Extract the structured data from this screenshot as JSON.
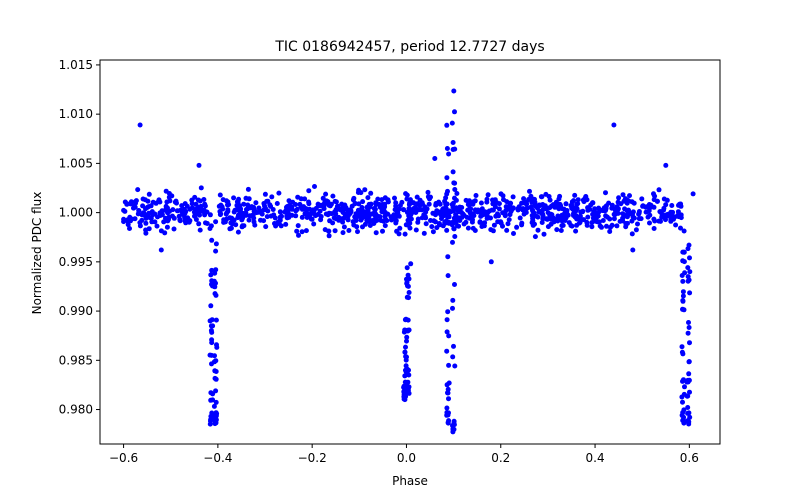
{
  "chart_data": {
    "type": "scatter",
    "title": "TIC 0186942457, period 12.7727 days",
    "xlabel": "Phase",
    "ylabel": "Normalized PDC flux",
    "xlim": [
      -0.65,
      0.665
    ],
    "ylim": [
      0.9765,
      1.0155
    ],
    "xticks": [
      -0.6,
      -0.4,
      -0.2,
      0.0,
      0.2,
      0.4,
      0.6
    ],
    "xtick_labels": [
      "−0.6",
      "−0.4",
      "−0.2",
      "0.0",
      "0.2",
      "0.4",
      "0.6"
    ],
    "yticks": [
      0.98,
      0.985,
      0.99,
      0.995,
      1.0,
      1.005,
      1.01,
      1.015
    ],
    "ytick_labels": [
      "0.980",
      "0.985",
      "0.990",
      "0.995",
      "1.000",
      "1.005",
      "1.010",
      "1.015"
    ],
    "grid": false,
    "marker_color": "#0000ff",
    "baseline": {
      "x_range": [
        -0.6,
        0.6
      ],
      "y_center": 1.0,
      "y_spread": 0.0017,
      "gaps": [
        [
          -0.418,
          -0.398
        ],
        [
          0.585,
          0.6
        ]
      ]
    },
    "features": [
      {
        "x": -0.414,
        "ymin": 0.9785,
        "ymax": 1.0
      },
      {
        "x": -0.405,
        "ymin": 0.9785,
        "ymax": 1.0
      },
      {
        "x": -0.003,
        "ymin": 0.981,
        "ymax": 0.9895
      },
      {
        "x": 0.003,
        "ymin": 0.9815,
        "ymax": 0.995
      },
      {
        "x": 0.088,
        "ymin": 0.9785,
        "ymax": 1.009
      },
      {
        "x": 0.1,
        "ymin": 0.9775,
        "ymax": 1.0138
      },
      {
        "x": 0.587,
        "ymin": 0.9785,
        "ymax": 1.0
      },
      {
        "x": 0.598,
        "ymin": 0.9785,
        "ymax": 0.9985
      }
    ],
    "points": [
      {
        "x": -0.565,
        "y": 1.0089
      },
      {
        "x": 0.44,
        "y": 1.0089
      },
      {
        "x": 0.18,
        "y": 0.995
      },
      {
        "x": 0.009,
        "y": 0.9948
      },
      {
        "x": 0.608,
        "y": 1.0019
      },
      {
        "x": 0.06,
        "y": 1.0055
      },
      {
        "x": -0.44,
        "y": 1.0048
      },
      {
        "x": 0.55,
        "y": 1.0048
      },
      {
        "x": -0.52,
        "y": 0.9962
      },
      {
        "x": 0.48,
        "y": 0.9962
      }
    ]
  }
}
